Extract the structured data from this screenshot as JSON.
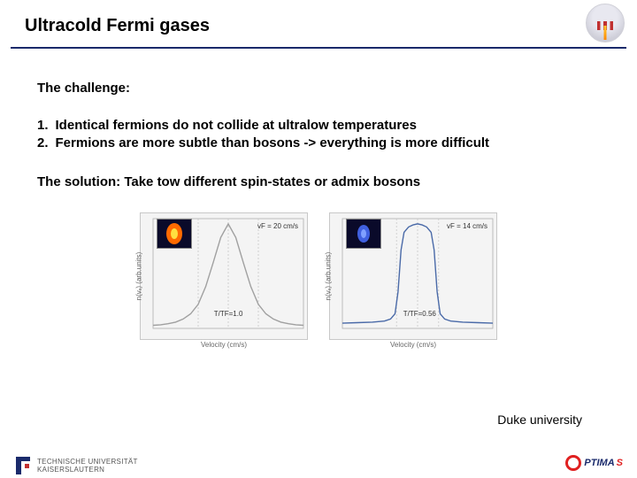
{
  "title": "Ultracold Fermi gases",
  "challenge_label": "The challenge:",
  "points": [
    {
      "num": "1.",
      "text": "Identical fermions do not collide at ultralow temperatures"
    },
    {
      "num": "2.",
      "text": "Fermions are more subtle than bosons -> everything is more difficult"
    }
  ],
  "solution": "The solution: Take tow different spin-states or admix bosons",
  "credit": "Duke university",
  "charts": {
    "ylabel": "n(vₓ) (arb.units)",
    "xlabel": "Velocity (cm/s)",
    "left": {
      "type": "line",
      "vf_label": "vF = 20 cm/s",
      "tt_label": "T/TF=1.0",
      "curve_color": "#a0a0a0",
      "curve_width": 1.4,
      "grid_color": "#c8c8c8",
      "bg_color": "#f4f4f4",
      "xlim": [
        -50,
        50
      ],
      "ylim": [
        0,
        1.05
      ],
      "inset": {
        "bg": "#0a0a2a",
        "blob_outer": "#ff6a00",
        "blob_inner": "#ffe040",
        "outer_w": 18,
        "outer_h": 24,
        "inner_w": 8,
        "inner_h": 12
      },
      "points": [
        [
          -50,
          0.03
        ],
        [
          -45,
          0.035
        ],
        [
          -40,
          0.045
        ],
        [
          -35,
          0.06
        ],
        [
          -30,
          0.09
        ],
        [
          -25,
          0.14
        ],
        [
          -20,
          0.23
        ],
        [
          -15,
          0.4
        ],
        [
          -10,
          0.63
        ],
        [
          -5,
          0.87
        ],
        [
          0,
          1.0
        ],
        [
          5,
          0.87
        ],
        [
          10,
          0.63
        ],
        [
          15,
          0.4
        ],
        [
          20,
          0.23
        ],
        [
          25,
          0.14
        ],
        [
          30,
          0.09
        ],
        [
          35,
          0.06
        ],
        [
          40,
          0.045
        ],
        [
          45,
          0.035
        ],
        [
          50,
          0.03
        ]
      ]
    },
    "right": {
      "type": "line",
      "vf_label": "vF = 14 cm/s",
      "tt_label": "T/TF=0.56",
      "curve_color": "#4a6aa8",
      "curve_width": 1.4,
      "grid_color": "#c8c8c8",
      "bg_color": "#f4f4f4",
      "xlim": [
        -50,
        50
      ],
      "ylim": [
        0,
        1.05
      ],
      "inset": {
        "bg": "#0a0a2a",
        "blob_outer": "#4060e0",
        "blob_inner": "#80a0ff",
        "outer_w": 14,
        "outer_h": 20,
        "inner_w": 6,
        "inner_h": 10
      },
      "points": [
        [
          -50,
          0.05
        ],
        [
          -40,
          0.055
        ],
        [
          -30,
          0.06
        ],
        [
          -22,
          0.07
        ],
        [
          -18,
          0.09
        ],
        [
          -15,
          0.14
        ],
        [
          -13,
          0.35
        ],
        [
          -11,
          0.75
        ],
        [
          -9,
          0.92
        ],
        [
          -6,
          0.97
        ],
        [
          -3,
          0.99
        ],
        [
          0,
          1.0
        ],
        [
          3,
          0.99
        ],
        [
          6,
          0.97
        ],
        [
          9,
          0.92
        ],
        [
          11,
          0.75
        ],
        [
          13,
          0.35
        ],
        [
          15,
          0.14
        ],
        [
          18,
          0.09
        ],
        [
          22,
          0.07
        ],
        [
          30,
          0.06
        ],
        [
          40,
          0.055
        ],
        [
          50,
          0.05
        ]
      ]
    }
  },
  "logos": {
    "left_text": "TECHNISCHE UNIVERSITÄT\nKAISERSLAUTERN",
    "right_pre": "PTIMA",
    "right_s_color": "#e02020",
    "right_text_color": "#1a2a6b"
  }
}
